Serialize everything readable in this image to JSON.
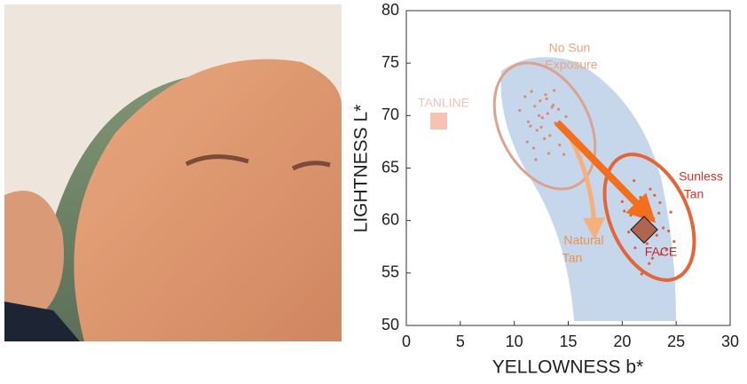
{
  "chart_data": {
    "type": "scatter",
    "xlabel": "YELLOWNESS b*",
    "ylabel": "LIGHTNESS L*",
    "xlim": [
      0,
      30
    ],
    "ylim": [
      50,
      80
    ],
    "xticks": [
      0,
      5,
      10,
      15,
      20,
      25,
      30
    ],
    "yticks": [
      50,
      55,
      60,
      65,
      70,
      75,
      80
    ],
    "series": [
      {
        "color": "#d98a78",
        "x": [
          10.5,
          11.0,
          11.3,
          11.6,
          11.9,
          12.1,
          12.4,
          12.6,
          12.9,
          13.1,
          13.3,
          13.6,
          13.8,
          14.1,
          14.4,
          11.2,
          11.8,
          12.3,
          12.8,
          13.2,
          13.7,
          14.2,
          14.8,
          12.0,
          12.5,
          13.0,
          13.5,
          11.5,
          14.6,
          15.2
        ],
        "y": [
          70.5,
          71.8,
          69.4,
          72.3,
          70.9,
          68.6,
          71.4,
          69.8,
          72.0,
          70.2,
          68.1,
          71.0,
          69.3,
          70.6,
          68.8,
          67.5,
          66.9,
          70.0,
          67.8,
          66.4,
          72.4,
          67.2,
          69.9,
          65.8,
          68.9,
          71.6,
          70.8,
          69.0,
          66.3,
          68.0
        ]
      },
      {
        "color": "#e2603c",
        "x": [
          19.5,
          20.0,
          20.4,
          20.8,
          21.1,
          21.4,
          21.7,
          22.0,
          22.3,
          22.6,
          22.9,
          23.2,
          23.5,
          23.8,
          24.1,
          24.5,
          20.6,
          21.2,
          21.9,
          22.5,
          23.0,
          23.6,
          24.3,
          21.5,
          22.2,
          22.8,
          23.4,
          24.8,
          20.2,
          21.8
        ],
        "y": [
          63.5,
          61.8,
          62.9,
          60.5,
          63.8,
          59.6,
          62.2,
          61.0,
          57.8,
          63.0,
          60.2,
          58.6,
          61.7,
          59.3,
          57.2,
          60.8,
          58.9,
          57.4,
          60.0,
          55.9,
          62.4,
          56.8,
          59.0,
          61.2,
          58.2,
          56.4,
          60.7,
          58.0,
          60.9,
          54.9
        ]
      }
    ],
    "annotations": [
      {
        "text": [
          "No Sun",
          "Exposure"
        ],
        "color": "#eba57a"
      },
      {
        "text": [
          "TANLINE"
        ],
        "color": "#f4c2b3"
      },
      {
        "text": [
          "Sunless",
          "Tan"
        ],
        "color": "#e2302a"
      },
      {
        "text": [
          "Natural",
          "Tan"
        ],
        "color": "#e8924e"
      },
      {
        "text": [
          "FACE"
        ],
        "color": "#c0282a"
      }
    ]
  }
}
